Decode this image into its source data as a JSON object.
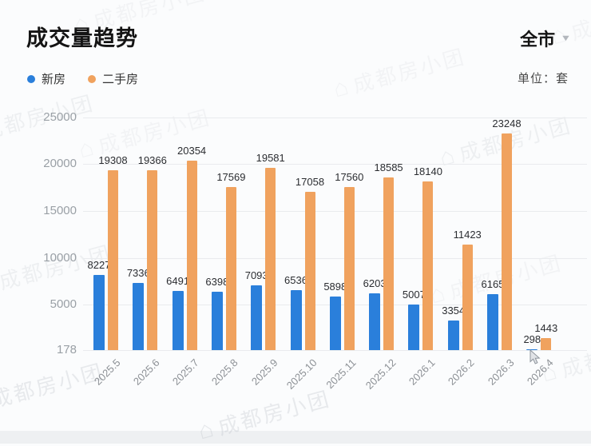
{
  "header": {
    "title": "成交量趋势",
    "region": "全市",
    "unit_label": "单位：套"
  },
  "legend": [
    {
      "label": "新房",
      "color": "#2A7FDB"
    },
    {
      "label": "二手房",
      "color": "#F0A25E"
    }
  ],
  "watermark": {
    "text": "成都房小团"
  },
  "chart_data": {
    "type": "bar",
    "title": "成交量趋势",
    "xlabel": "",
    "ylabel": "套",
    "categories": [
      "2025.5",
      "2025.6",
      "2025.7",
      "2025.8",
      "2025.9",
      "2025.10",
      "2025.11",
      "2025.12",
      "2026.1",
      "2026.2",
      "2026.3",
      "2026.4"
    ],
    "series": [
      {
        "name": "新房",
        "color": "#2A7FDB",
        "values": [
          8227,
          7336,
          6491,
          6398,
          7093,
          6536,
          5898,
          6203,
          5007,
          3354,
          6165,
          298
        ]
      },
      {
        "name": "二手房",
        "color": "#F0A25E",
        "values": [
          19308,
          19366,
          20354,
          17569,
          19581,
          17058,
          17560,
          18585,
          18140,
          11423,
          23248,
          1443
        ]
      }
    ],
    "y_ticks": [
      25000,
      20000,
      15000,
      10000,
      5000,
      178
    ],
    "ylim": [
      178,
      25000
    ],
    "grid": true,
    "legend_position": "top-left",
    "data_labels": true
  }
}
